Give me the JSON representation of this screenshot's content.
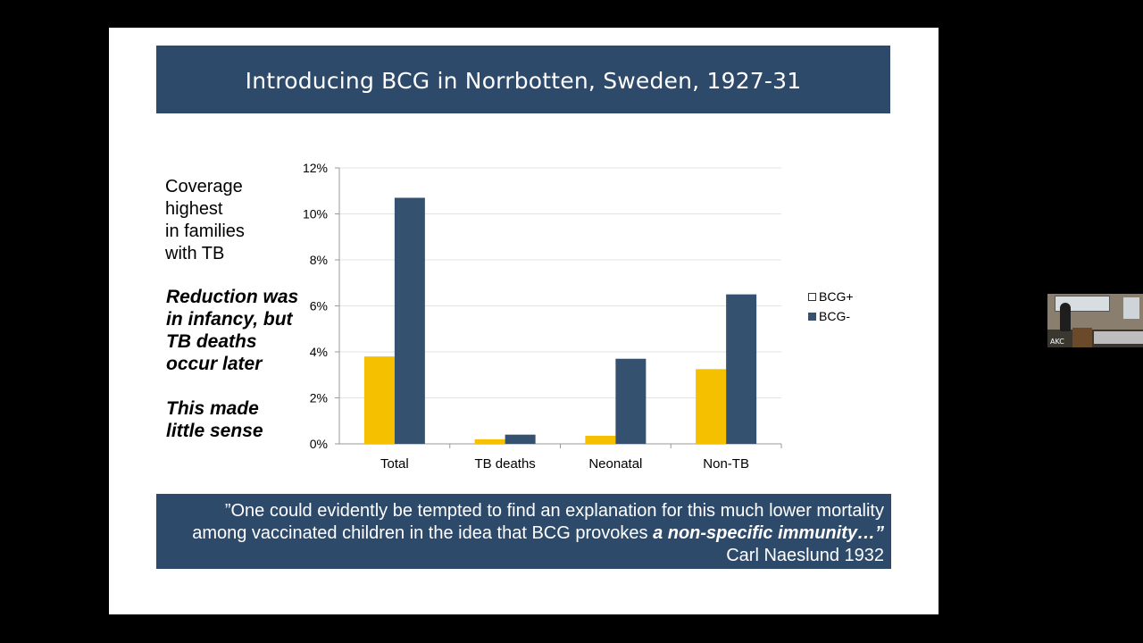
{
  "slide": {
    "title": "Introducing BCG in Norrbotten, Sweden, 1927-31",
    "side_text_plain": [
      "Coverage",
      "highest",
      "in families",
      "with TB"
    ],
    "side_text_bold1": [
      "Reduction was",
      "in infancy, but",
      "TB deaths",
      "occur later"
    ],
    "side_text_bold2": [
      "This made",
      "little sense"
    ],
    "quote": {
      "line1": "”One could evidently be tempted to find an explanation for this much lower mortality",
      "line2_prefix": "among vaccinated children in the idea that BCG provokes ",
      "line2_emph": "a non-specific immunity…”",
      "attribution": "Carl Naeslund 1932"
    }
  },
  "webcam": {
    "label": "AKC"
  },
  "colors": {
    "title_bar": "#2d4a6b",
    "bcg_plus": "#f5c000",
    "bcg_minus": "#34526f"
  },
  "chart_data": {
    "type": "bar",
    "categories": [
      "Total",
      "TB deaths",
      "Neonatal",
      "Non-TB"
    ],
    "series": [
      {
        "name": "BCG+",
        "values": [
          3.8,
          0.2,
          0.35,
          3.25
        ]
      },
      {
        "name": "BCG-",
        "values": [
          10.7,
          0.4,
          3.7,
          6.5
        ]
      }
    ],
    "ylim": [
      0,
      12
    ],
    "yticks": [
      "0%",
      "2%",
      "4%",
      "6%",
      "8%",
      "10%",
      "12%"
    ],
    "grid": true,
    "legend_position": "right"
  }
}
